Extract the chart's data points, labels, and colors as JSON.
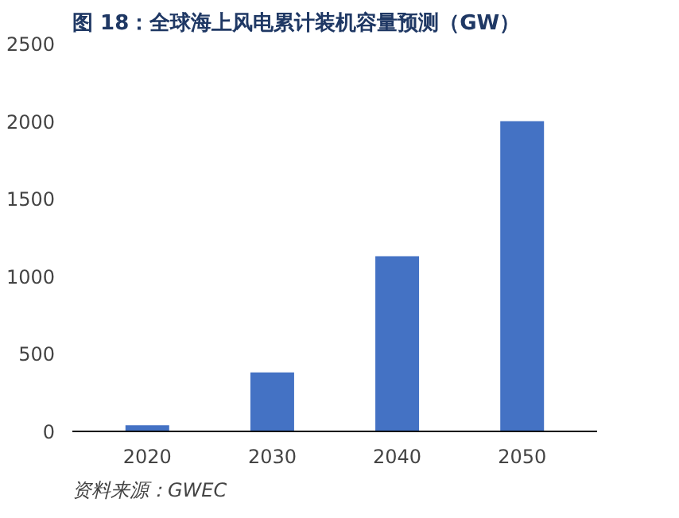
{
  "chart_data": {
    "type": "bar",
    "title": "图 18：全球海上风电累计装机容量预测（GW）",
    "categories": [
      "2020",
      "2030",
      "2040",
      "2050"
    ],
    "values": [
      40,
      380,
      1130,
      2000
    ],
    "color": "#4472c4",
    "ylim": [
      0,
      2500
    ],
    "yticks": [
      0,
      500,
      1000,
      1500,
      2000,
      2500
    ],
    "grid": false,
    "annotations": [
      "资料来源：GWEC"
    ]
  }
}
